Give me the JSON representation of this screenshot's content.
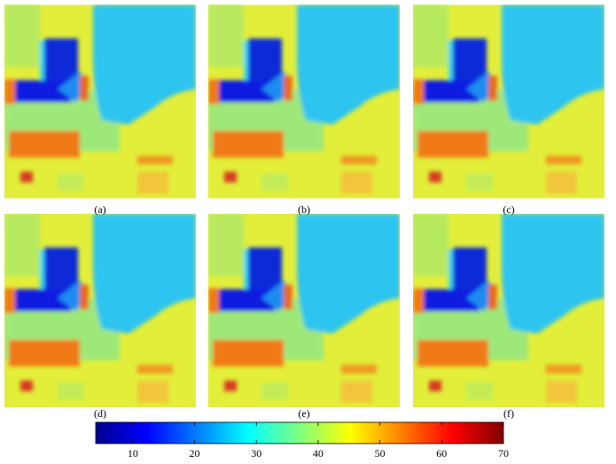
{
  "panels": [
    {
      "label": "(a)"
    },
    {
      "label": "(b)"
    },
    {
      "label": "(c)"
    },
    {
      "label": "(d)"
    },
    {
      "label": "(e)"
    },
    {
      "label": "(f)"
    }
  ],
  "colorbar": {
    "lim": [
      4,
      70
    ],
    "ticks": [
      10,
      20,
      30,
      40,
      50,
      60,
      70
    ]
  }
}
